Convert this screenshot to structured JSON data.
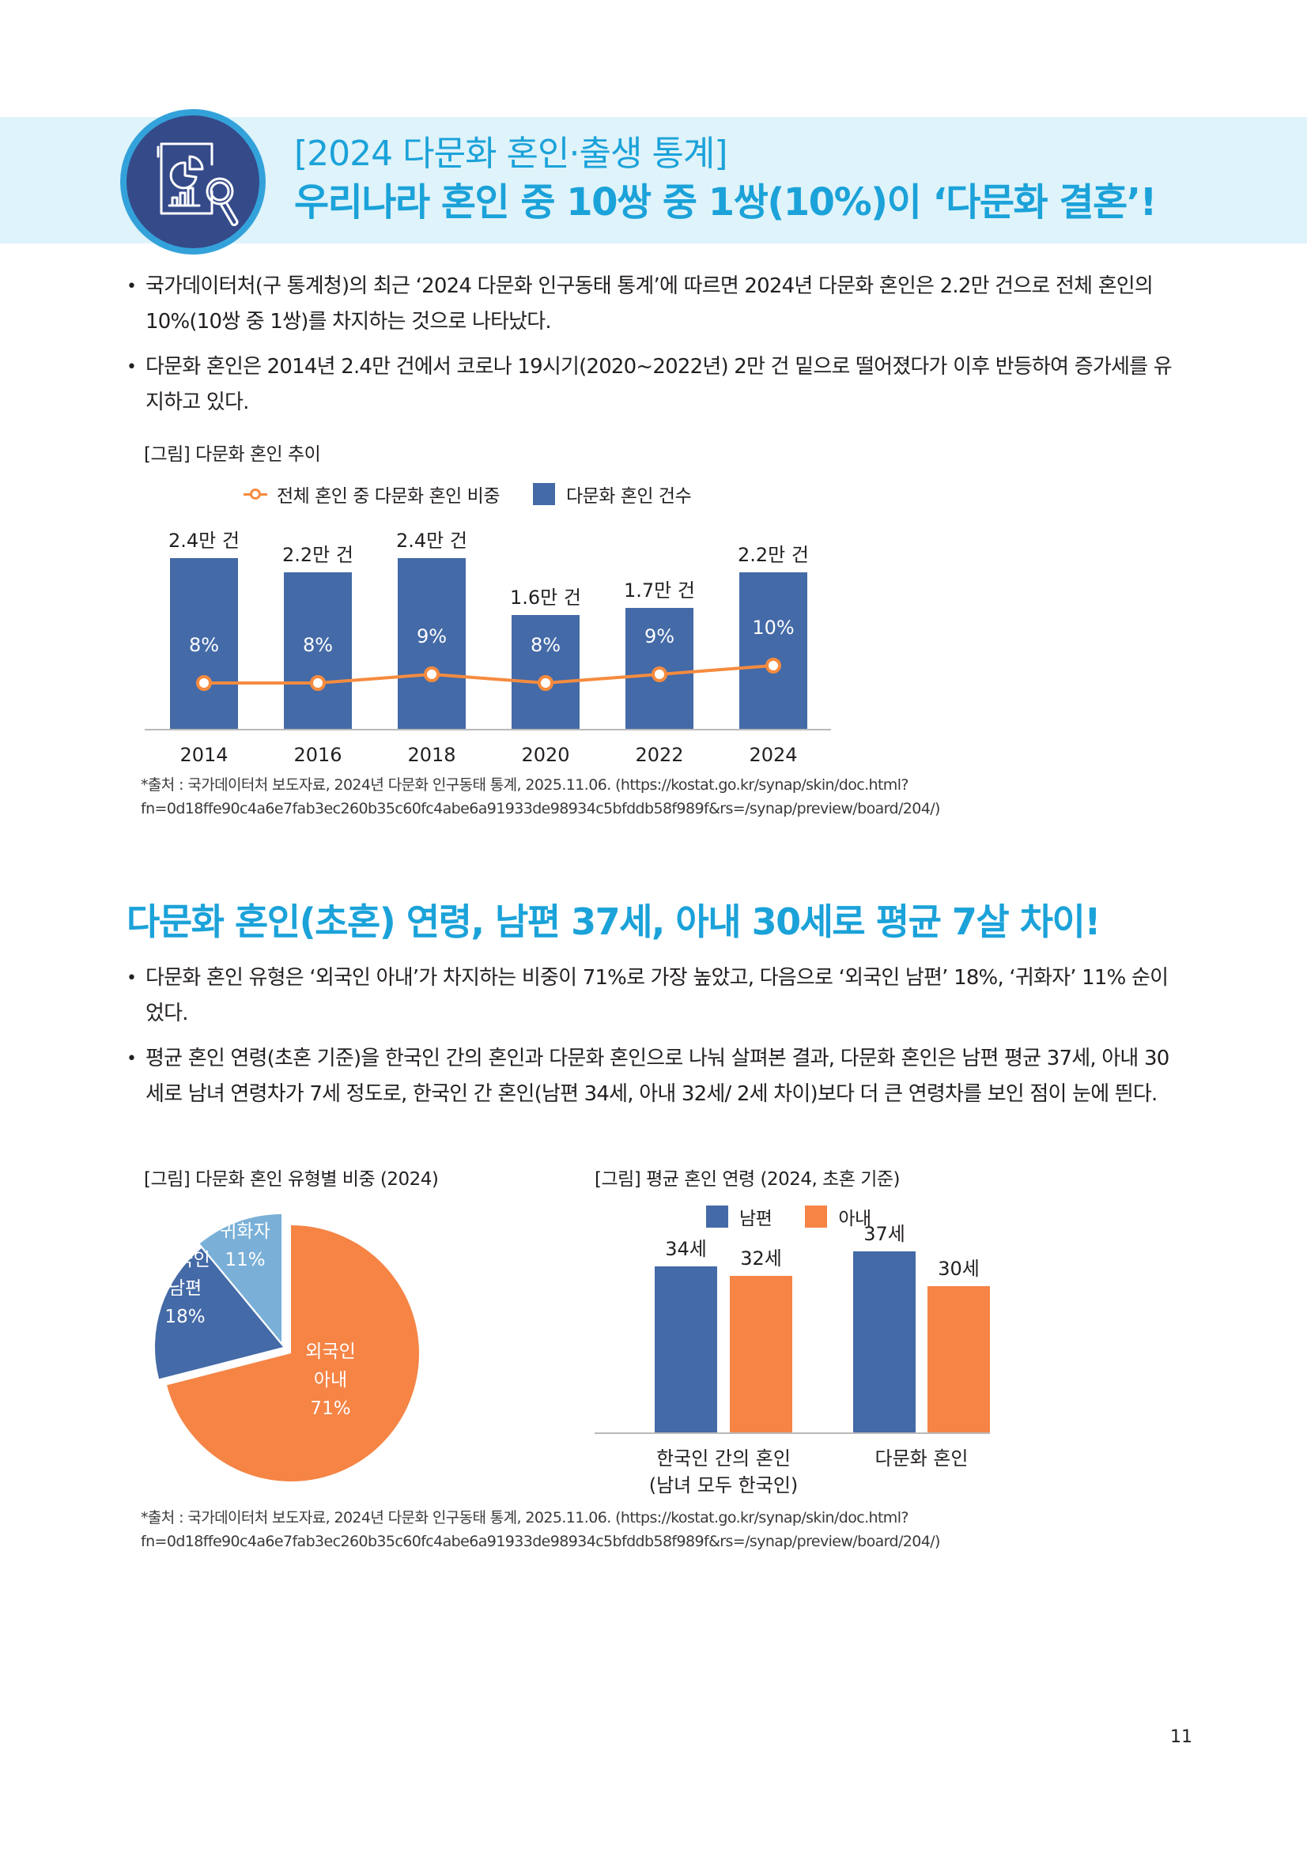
{
  "header": {
    "icon": "report-magnifier-icon",
    "line1": "[2024 다문화 혼인·출생 통계]",
    "line2": "우리나라 혼인 중 10쌍 중 1쌍(10%)이 ‘다문화 결혼’!",
    "band_color": "#dff3fa",
    "title_color": "#1ba2d9"
  },
  "section1": {
    "bullets": [
      "국가데이터처(구 통계청)의 최근 ‘2024 다문화 인구동태 통계’에 따르면 2024년 다문화 혼인은 2.2만 건으로 전체 혼인의 10%(10쌍 중 1쌍)를 차지하는 것으로 나타났다.",
      "다문화 혼인은 2014년 2.4만 건에서 코로나 19시기(2020~2022년) 2만 건 밑으로 떨어졌다가 이후 반등하여 증가세를 유지하고 있다."
    ],
    "figure_caption": "[그림] 다문화 혼인 추이",
    "legend": {
      "line": "전체 혼인 중 다문화 혼인 비중",
      "bar": "다문화 혼인 건수"
    },
    "source_line1": "*출처 : 국가데이터처 보도자료, 2024년 다문화 인구동태 통계, 2025.11.06. (https://kostat.go.kr/synap/skin/doc.html?",
    "source_line2": "fn=0d18ffe90c4a6e7fab3ec260b35c60fc4abe6a91933de98934c5bfddb58f989f&rs=/synap/preview/board/204/)"
  },
  "section2": {
    "title": "다문화 혼인(초혼) 연령, 남편 37세, 아내 30세로 평균 7살 차이!",
    "bullets": [
      "다문화 혼인 유형은 ‘외국인 아내’가 차지하는 비중이 71%로 가장 높았고, 다음으로 ‘외국인 남편’ 18%, ‘귀화자’ 11% 순이었다.",
      "평균 혼인 연령(초혼 기준)을 한국인 간의 혼인과 다문화 혼인으로 나눠 살펴본 결과, 다문화 혼인은 남편 평균 37세, 아내 30세로 남녀 연령차가 7세 정도로, 한국인 간 혼인(남편 34세, 아내 32세/ 2세 차이)보다 더 큰 연령차를 보인 점이 눈에 띈다."
    ],
    "pie_caption": "[그림] 다문화 혼인 유형별 비중 (2024)",
    "age_caption": "[그림] 평균 혼인 연령 (2024, 초혼 기준)",
    "age_legend": {
      "husband": "남편",
      "wife": "아내"
    },
    "source_line1": "*출처 : 국가데이터처 보도자료, 2024년 다문화 인구동태 통계, 2025.11.06. (https://kostat.go.kr/synap/skin/doc.html?",
    "source_line2": "fn=0d18ffe90c4a6e7fab3ec260b35c60fc4abe6a91933de98934c5bfddb58f989f&rs=/synap/preview/board/204/)"
  },
  "page_number": "11",
  "colors": {
    "blue": "#446aa7",
    "orange": "#f58445",
    "light_blue": "#7ab0d8",
    "accent": "#1ba2d9"
  },
  "chart_data": [
    {
      "type": "bar",
      "title": "[그림] 다문화 혼인 추이",
      "categories": [
        "2014",
        "2016",
        "2018",
        "2020",
        "2022",
        "2024"
      ],
      "series": [
        {
          "name": "다문화 혼인 건수",
          "kind": "bar",
          "unit": "만 건",
          "values": [
            2.4,
            2.2,
            2.4,
            1.6,
            1.7,
            2.2
          ],
          "labels": [
            "2.4만 건",
            "2.2만 건",
            "2.4만 건",
            "1.6만 건",
            "1.7만 건",
            "2.2만 건"
          ]
        },
        {
          "name": "전체 혼인 중 다문화 혼인 비중",
          "kind": "line",
          "unit": "%",
          "values": [
            8,
            8,
            9,
            8,
            9,
            10
          ],
          "labels": [
            "8%",
            "8%",
            "9%",
            "8%",
            "9%",
            "10%"
          ]
        }
      ],
      "legend_position": "top",
      "grid": false
    },
    {
      "type": "pie",
      "title": "[그림] 다문화 혼인 유형별 비중 (2024)",
      "categories": [
        "외국인 아내",
        "외국인 남편",
        "귀화자"
      ],
      "values": [
        71,
        18,
        11
      ],
      "labels": [
        [
          "외국인",
          "아내",
          "71%"
        ],
        [
          "외국인",
          "남편",
          "18%"
        ],
        [
          "귀화자",
          "11%"
        ]
      ]
    },
    {
      "type": "bar",
      "title": "[그림] 평균 혼인 연령 (2024, 초혼 기준)",
      "categories": [
        [
          "한국인 간의 혼인",
          "(남녀 모두 한국인)"
        ],
        [
          "다문화 혼인"
        ]
      ],
      "series": [
        {
          "name": "남편",
          "values": [
            34,
            37
          ],
          "labels": [
            "34세",
            "37세"
          ]
        },
        {
          "name": "아내",
          "values": [
            32,
            30
          ],
          "labels": [
            "32세",
            "30세"
          ]
        }
      ],
      "legend_position": "top",
      "grid": false
    }
  ]
}
